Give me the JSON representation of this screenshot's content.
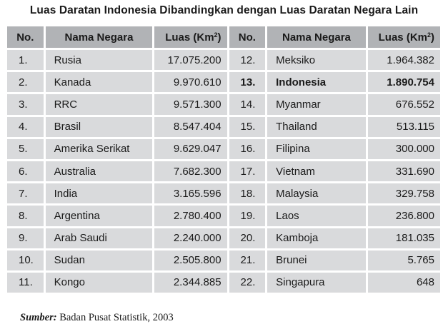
{
  "title": "Luas Daratan Indonesia Dibandingkan dengan Luas Daratan Negara Lain",
  "headers": {
    "no": "No.",
    "name": "Nama Negara",
    "area": "Luas (Km",
    "area_sup": "2",
    "area_close": ")"
  },
  "left": [
    {
      "no": "1.",
      "name": "Rusia",
      "area": "17.075.200"
    },
    {
      "no": "2.",
      "name": "Kanada",
      "area": "9.970.610"
    },
    {
      "no": "3.",
      "name": "RRC",
      "area": "9.571.300"
    },
    {
      "no": "4.",
      "name": "Brasil",
      "area": "8.547.404"
    },
    {
      "no": "5.",
      "name": "Amerika Serikat",
      "area": "9.629.047"
    },
    {
      "no": "6.",
      "name": "Australia",
      "area": "7.682.300"
    },
    {
      "no": "7.",
      "name": "India",
      "area": "3.165.596"
    },
    {
      "no": "8.",
      "name": "Argentina",
      "area": "2.780.400"
    },
    {
      "no": "9.",
      "name": "Arab Saudi",
      "area": "2.240.000"
    },
    {
      "no": "10.",
      "name": "Sudan",
      "area": "2.505.800"
    },
    {
      "no": "11.",
      "name": "Kongo",
      "area": "2.344.885"
    }
  ],
  "right": [
    {
      "no": "12.",
      "name": "Meksiko",
      "area": "1.964.382"
    },
    {
      "no": "13.",
      "name": "Indonesia",
      "area": "1.890.754",
      "highlight": true
    },
    {
      "no": "14.",
      "name": "Myanmar",
      "area": "676.552"
    },
    {
      "no": "15.",
      "name": "Thailand",
      "area": "513.115"
    },
    {
      "no": "16.",
      "name": "Filipina",
      "area": "300.000"
    },
    {
      "no": "17.",
      "name": "Vietnam",
      "area": "331.690"
    },
    {
      "no": "18.",
      "name": "Malaysia",
      "area": "329.758"
    },
    {
      "no": "19.",
      "name": "Laos",
      "area": "236.800"
    },
    {
      "no": "20.",
      "name": "Kamboja",
      "area": "181.035"
    },
    {
      "no": "21.",
      "name": "Brunei",
      "area": "5.765"
    },
    {
      "no": "22.",
      "name": "Singapura",
      "area": "648"
    }
  ],
  "source": {
    "label": "Sumber:",
    "text": " Badan Pusat Statistik, 2003"
  }
}
